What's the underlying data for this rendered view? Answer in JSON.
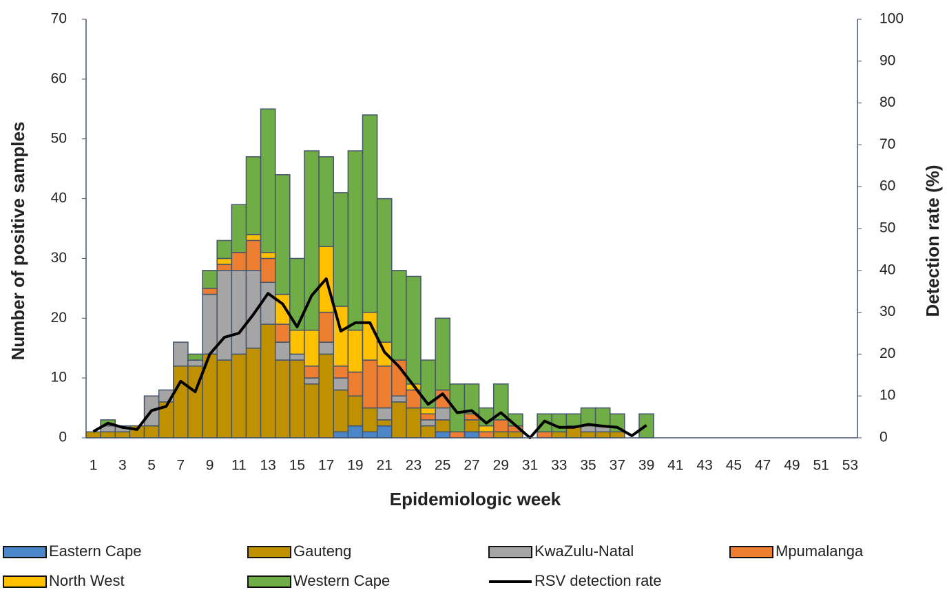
{
  "chart_data": {
    "type": "bar",
    "stacked": true,
    "x_label": "Epidemiologic week",
    "y_label": "Number of positive samples",
    "y2_label": "Detection rate (%)",
    "categories": [
      1,
      null,
      3,
      null,
      5,
      null,
      7,
      null,
      9,
      null,
      11,
      null,
      13,
      null,
      15,
      null,
      17,
      null,
      19,
      null,
      21,
      null,
      23,
      null,
      25,
      null,
      27,
      null,
      29,
      null,
      31,
      null,
      33,
      null,
      35,
      null,
      37,
      null,
      39,
      null,
      41,
      null,
      43,
      null,
      45,
      null,
      47,
      null,
      49,
      null,
      51,
      null,
      53
    ],
    "ylim": [
      0,
      70
    ],
    "yticks": [
      0,
      10,
      20,
      30,
      40,
      50,
      60,
      70
    ],
    "y2lim": [
      0,
      100
    ],
    "y2ticks": [
      0,
      10,
      20,
      30,
      40,
      50,
      60,
      70,
      80,
      90,
      100
    ],
    "grid": false,
    "legend": "bottom",
    "series": [
      {
        "name": "Eastern Cape",
        "color": "#4a86c8",
        "values": [
          0,
          0,
          0,
          0,
          0,
          0,
          0,
          0,
          0,
          0,
          0,
          0,
          0,
          0,
          0,
          0,
          0,
          1,
          2,
          1,
          2,
          0,
          0,
          0,
          1,
          0,
          1,
          0,
          0,
          0,
          0,
          0,
          0,
          0,
          0,
          0,
          0,
          0,
          0,
          0,
          0,
          0,
          0,
          0,
          0,
          0,
          0,
          0,
          0,
          0,
          0,
          0,
          0
        ]
      },
      {
        "name": "Gauteng",
        "color": "#bf9000",
        "values": [
          1,
          1,
          1,
          2,
          2,
          6,
          12,
          12,
          14,
          13,
          14,
          15,
          19,
          13,
          13,
          9,
          14,
          7,
          5,
          4,
          1,
          6,
          5,
          2,
          2,
          0,
          2,
          0,
          1,
          1,
          0,
          0,
          1,
          2,
          1,
          1,
          1,
          0,
          0,
          0,
          0,
          0,
          0,
          0,
          0,
          0,
          0,
          0,
          0,
          0,
          0,
          0,
          0
        ]
      },
      {
        "name": "KwaZulu-Natal",
        "color": "#a5a5a5",
        "values": [
          0,
          1,
          1,
          0,
          5,
          2,
          4,
          1,
          10,
          15,
          14,
          13,
          7,
          3,
          1,
          1,
          2,
          2,
          0,
          0,
          2,
          1,
          0,
          1,
          2,
          0,
          0,
          0,
          0,
          0,
          0,
          0,
          0,
          0,
          1,
          1,
          0,
          0,
          0,
          0,
          0,
          0,
          0,
          0,
          0,
          0,
          0,
          0,
          0,
          0,
          0,
          0,
          0
        ]
      },
      {
        "name": "Mpumalanga",
        "color": "#ed7d31",
        "values": [
          0,
          0,
          0,
          0,
          0,
          0,
          0,
          0,
          1,
          1,
          3,
          5,
          4,
          3,
          0,
          2,
          5,
          2,
          4,
          8,
          7,
          6,
          3,
          1,
          3,
          1,
          1,
          1,
          2,
          1,
          0,
          1,
          0,
          0,
          0,
          0,
          0,
          0,
          0,
          0,
          0,
          0,
          0,
          0,
          0,
          0,
          0,
          0,
          0,
          0,
          0,
          0,
          0
        ]
      },
      {
        "name": "North West",
        "color": "#ffc000",
        "values": [
          0,
          0,
          0,
          0,
          0,
          0,
          0,
          0,
          0,
          1,
          0,
          1,
          1,
          5,
          4,
          6,
          11,
          10,
          7,
          8,
          4,
          0,
          1,
          1,
          0,
          0,
          0,
          1,
          0,
          0,
          0,
          0,
          0,
          0,
          0,
          0,
          0,
          0,
          0,
          0,
          0,
          0,
          0,
          0,
          0,
          0,
          0,
          0,
          0,
          0,
          0,
          0,
          0
        ]
      },
      {
        "name": "Western Cape",
        "color": "#70ad47",
        "values": [
          0,
          1,
          0,
          0,
          0,
          0,
          0,
          1,
          3,
          3,
          8,
          13,
          24,
          20,
          12,
          30,
          15,
          19,
          30,
          33,
          24,
          15,
          18,
          8,
          12,
          8,
          5,
          3,
          6,
          2,
          0,
          3,
          3,
          2,
          3,
          3,
          3,
          0,
          4,
          0,
          0,
          0,
          0,
          0,
          0,
          0,
          0,
          0,
          0,
          0,
          0,
          0,
          0
        ]
      },
      {
        "name": "RSV detection rate",
        "type": "line",
        "axis": "y2",
        "color": "#000000",
        "values": [
          1.5,
          3.5,
          2.5,
          2,
          6.5,
          7.5,
          13.5,
          11,
          20,
          24,
          25,
          29.5,
          34.5,
          32,
          26.5,
          34,
          38,
          25.5,
          27.5,
          27.5,
          20.5,
          17,
          12.5,
          8,
          10.5,
          6,
          6.5,
          3.5,
          6,
          3,
          0,
          4,
          2.5,
          2.5,
          3.2,
          2.8,
          2.5,
          0.5,
          3,
          null,
          null,
          null,
          null,
          null,
          null,
          null,
          null,
          null,
          null,
          null,
          null,
          null,
          null
        ]
      }
    ]
  }
}
